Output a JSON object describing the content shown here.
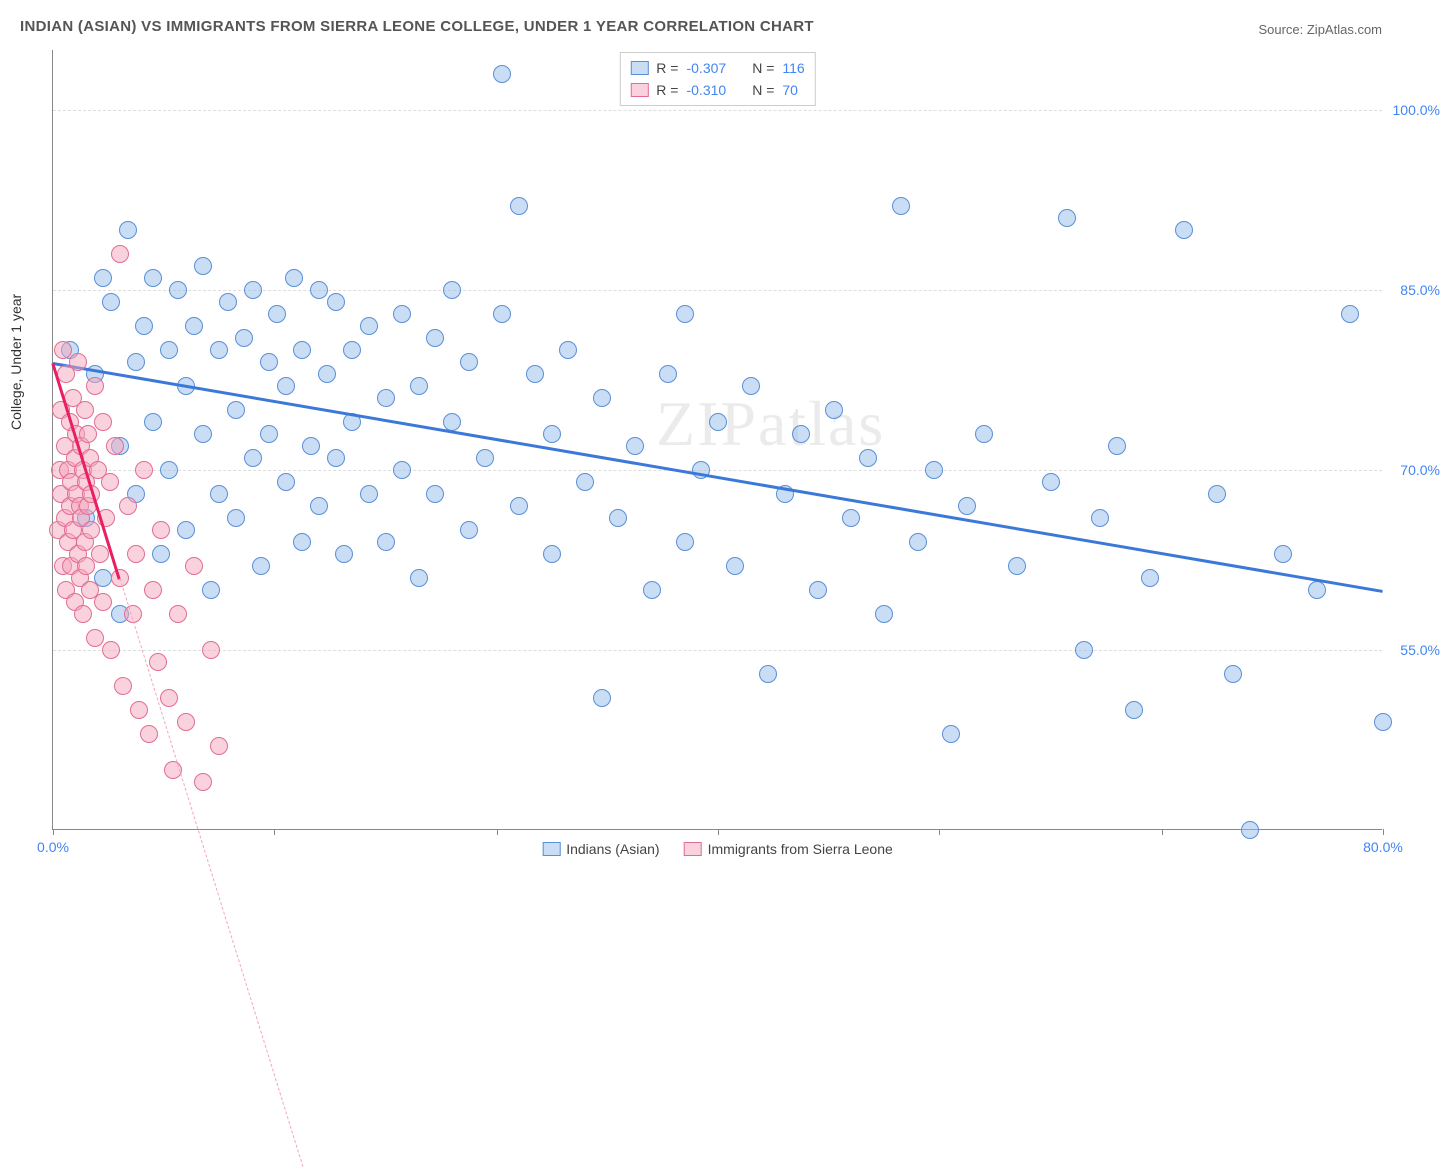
{
  "title": "INDIAN (ASIAN) VS IMMIGRANTS FROM SIERRA LEONE COLLEGE, UNDER 1 YEAR CORRELATION CHART",
  "source": "Source: ZipAtlas.com",
  "ylabel": "College, Under 1 year",
  "watermark": "ZIPatlas",
  "chart": {
    "type": "scatter",
    "xlim": [
      0,
      80
    ],
    "ylim": [
      40,
      105
    ],
    "x_ticks": [
      0,
      13.3,
      26.7,
      40,
      53.3,
      66.7,
      80
    ],
    "x_tick_labels": {
      "0": "0.0%",
      "80": "80.0%"
    },
    "y_ticks": [
      55,
      70,
      85,
      100
    ],
    "y_tick_labels": {
      "55": "55.0%",
      "70": "70.0%",
      "85": "85.0%",
      "100": "100.0%"
    },
    "background_color": "#ffffff",
    "grid_color": "#dddddd",
    "axis_color": "#888888",
    "tick_label_color": "#4285f4",
    "label_fontsize": 14,
    "title_fontsize": 15
  },
  "series": [
    {
      "name": "Indians (Asian)",
      "fill": "rgba(148,187,233,0.5)",
      "stroke": "#5b8fd6",
      "marker_radius": 9,
      "trend": {
        "x1": 0,
        "y1": 79,
        "x2": 80,
        "y2": 60,
        "color": "#3b78d8",
        "width": 2.5
      },
      "points": [
        [
          1,
          80
        ],
        [
          2,
          66
        ],
        [
          2.5,
          78
        ],
        [
          3,
          86
        ],
        [
          3,
          61
        ],
        [
          3.5,
          84
        ],
        [
          4,
          72
        ],
        [
          4,
          58
        ],
        [
          4.5,
          90
        ],
        [
          5,
          79
        ],
        [
          5,
          68
        ],
        [
          5.5,
          82
        ],
        [
          6,
          74
        ],
        [
          6,
          86
        ],
        [
          6.5,
          63
        ],
        [
          7,
          80
        ],
        [
          7,
          70
        ],
        [
          7.5,
          85
        ],
        [
          8,
          77
        ],
        [
          8,
          65
        ],
        [
          8.5,
          82
        ],
        [
          9,
          73
        ],
        [
          9,
          87
        ],
        [
          9.5,
          60
        ],
        [
          10,
          80
        ],
        [
          10,
          68
        ],
        [
          10.5,
          84
        ],
        [
          11,
          75
        ],
        [
          11,
          66
        ],
        [
          11.5,
          81
        ],
        [
          12,
          71
        ],
        [
          12,
          85
        ],
        [
          12.5,
          62
        ],
        [
          13,
          79
        ],
        [
          13,
          73
        ],
        [
          13.5,
          83
        ],
        [
          14,
          69
        ],
        [
          14,
          77
        ],
        [
          14.5,
          86
        ],
        [
          15,
          64
        ],
        [
          15,
          80
        ],
        [
          15.5,
          72
        ],
        [
          16,
          85
        ],
        [
          16,
          67
        ],
        [
          16.5,
          78
        ],
        [
          17,
          71
        ],
        [
          17,
          84
        ],
        [
          17.5,
          63
        ],
        [
          18,
          80
        ],
        [
          18,
          74
        ],
        [
          19,
          68
        ],
        [
          19,
          82
        ],
        [
          20,
          76
        ],
        [
          20,
          64
        ],
        [
          21,
          83
        ],
        [
          21,
          70
        ],
        [
          22,
          77
        ],
        [
          22,
          61
        ],
        [
          23,
          81
        ],
        [
          23,
          68
        ],
        [
          24,
          74
        ],
        [
          24,
          85
        ],
        [
          25,
          65
        ],
        [
          25,
          79
        ],
        [
          26,
          71
        ],
        [
          27,
          83
        ],
        [
          27,
          103
        ],
        [
          28,
          67
        ],
        [
          28,
          92
        ],
        [
          29,
          78
        ],
        [
          30,
          63
        ],
        [
          30,
          73
        ],
        [
          31,
          80
        ],
        [
          32,
          69
        ],
        [
          33,
          76
        ],
        [
          33,
          51
        ],
        [
          34,
          66
        ],
        [
          35,
          72
        ],
        [
          36,
          60
        ],
        [
          37,
          78
        ],
        [
          38,
          64
        ],
        [
          38,
          83
        ],
        [
          39,
          70
        ],
        [
          40,
          74
        ],
        [
          41,
          62
        ],
        [
          42,
          77
        ],
        [
          43,
          53
        ],
        [
          44,
          68
        ],
        [
          45,
          73
        ],
        [
          46,
          60
        ],
        [
          47,
          75
        ],
        [
          48,
          66
        ],
        [
          49,
          71
        ],
        [
          50,
          58
        ],
        [
          51,
          92
        ],
        [
          52,
          64
        ],
        [
          53,
          70
        ],
        [
          54,
          48
        ],
        [
          55,
          67
        ],
        [
          56,
          73
        ],
        [
          58,
          62
        ],
        [
          60,
          69
        ],
        [
          61,
          91
        ],
        [
          62,
          55
        ],
        [
          63,
          66
        ],
        [
          64,
          72
        ],
        [
          65,
          50
        ],
        [
          66,
          61
        ],
        [
          68,
          90
        ],
        [
          70,
          68
        ],
        [
          71,
          53
        ],
        [
          72,
          40
        ],
        [
          74,
          63
        ],
        [
          76,
          60
        ],
        [
          78,
          83
        ],
        [
          80,
          49
        ]
      ]
    },
    {
      "name": "Immigrants from Sierra Leone",
      "fill": "rgba(244,166,188,0.5)",
      "stroke": "#e16d94",
      "marker_radius": 9,
      "trend": {
        "x1": 0,
        "y1": 79,
        "x2": 4,
        "y2": 61,
        "color": "#e91e63",
        "width": 2.5
      },
      "trend_dash": {
        "x1": 4,
        "y1": 61,
        "x2": 15,
        "y2": 12,
        "color": "#f4a6bc"
      },
      "points": [
        [
          0.3,
          65
        ],
        [
          0.4,
          70
        ],
        [
          0.5,
          68
        ],
        [
          0.5,
          75
        ],
        [
          0.6,
          62
        ],
        [
          0.6,
          80
        ],
        [
          0.7,
          66
        ],
        [
          0.7,
          72
        ],
        [
          0.8,
          60
        ],
        [
          0.8,
          78
        ],
        [
          0.9,
          64
        ],
        [
          0.9,
          70
        ],
        [
          1.0,
          67
        ],
        [
          1.0,
          74
        ],
        [
          1.1,
          62
        ],
        [
          1.1,
          69
        ],
        [
          1.2,
          76
        ],
        [
          1.2,
          65
        ],
        [
          1.3,
          71
        ],
        [
          1.3,
          59
        ],
        [
          1.4,
          68
        ],
        [
          1.4,
          73
        ],
        [
          1.5,
          63
        ],
        [
          1.5,
          79
        ],
        [
          1.6,
          67
        ],
        [
          1.6,
          61
        ],
        [
          1.7,
          72
        ],
        [
          1.7,
          66
        ],
        [
          1.8,
          70
        ],
        [
          1.8,
          58
        ],
        [
          1.9,
          75
        ],
        [
          1.9,
          64
        ],
        [
          2.0,
          69
        ],
        [
          2.0,
          62
        ],
        [
          2.1,
          73
        ],
        [
          2.1,
          67
        ],
        [
          2.2,
          60
        ],
        [
          2.2,
          71
        ],
        [
          2.3,
          65
        ],
        [
          2.3,
          68
        ],
        [
          2.5,
          77
        ],
        [
          2.5,
          56
        ],
        [
          2.7,
          70
        ],
        [
          2.8,
          63
        ],
        [
          3.0,
          74
        ],
        [
          3.0,
          59
        ],
        [
          3.2,
          66
        ],
        [
          3.4,
          69
        ],
        [
          3.5,
          55
        ],
        [
          3.7,
          72
        ],
        [
          4.0,
          61
        ],
        [
          4.0,
          88
        ],
        [
          4.2,
          52
        ],
        [
          4.5,
          67
        ],
        [
          4.8,
          58
        ],
        [
          5.0,
          63
        ],
        [
          5.2,
          50
        ],
        [
          5.5,
          70
        ],
        [
          5.8,
          48
        ],
        [
          6.0,
          60
        ],
        [
          6.3,
          54
        ],
        [
          6.5,
          65
        ],
        [
          7.0,
          51
        ],
        [
          7.2,
          45
        ],
        [
          7.5,
          58
        ],
        [
          8.0,
          49
        ],
        [
          8.5,
          62
        ],
        [
          9.0,
          44
        ],
        [
          9.5,
          55
        ],
        [
          10.0,
          47
        ]
      ]
    }
  ],
  "stats": [
    {
      "swatch_fill": "rgba(148,187,233,0.5)",
      "swatch_stroke": "#5b8fd6",
      "r_label": "R =",
      "r_value": "-0.307",
      "n_label": "N =",
      "n_value": "116"
    },
    {
      "swatch_fill": "rgba(244,166,188,0.5)",
      "swatch_stroke": "#e16d94",
      "r_label": "R =",
      "r_value": "-0.310",
      "n_label": "N =",
      "n_value": "70"
    }
  ],
  "legend": [
    {
      "swatch_fill": "rgba(148,187,233,0.5)",
      "swatch_stroke": "#5b8fd6",
      "label": "Indians (Asian)"
    },
    {
      "swatch_fill": "rgba(244,166,188,0.5)",
      "swatch_stroke": "#e16d94",
      "label": "Immigrants from Sierra Leone"
    }
  ]
}
